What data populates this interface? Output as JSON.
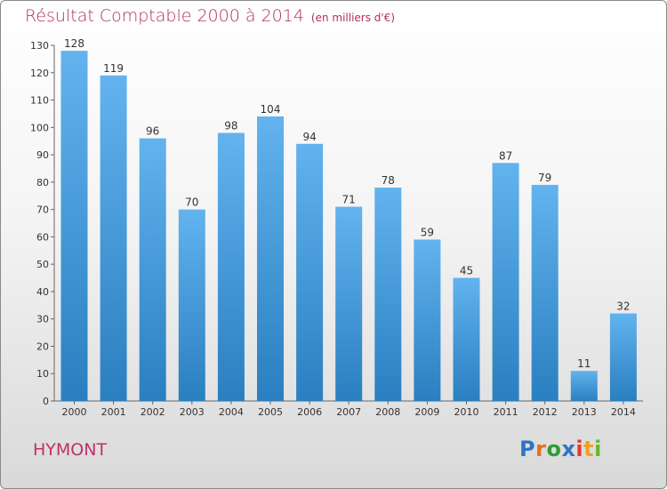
{
  "header": {
    "title": "Résultat Comptable 2000 à 2014",
    "subtitle": "(en milliers d'€)"
  },
  "footer": {
    "commune": "HYMONT",
    "brand": "Proxiti"
  },
  "colors": {
    "bar_light": "#62b3ee",
    "bar_dark": "#2a7fc0",
    "title": "#b03060",
    "text": "#333333",
    "axis": "#666666"
  },
  "logo_letters": [
    {
      "ch": "P",
      "color": "#2f74c4"
    },
    {
      "ch": "r",
      "color": "#e8701a"
    },
    {
      "ch": "o",
      "color": "#2f9c3a"
    },
    {
      "ch": "x",
      "color": "#2f74c4"
    },
    {
      "ch": "i",
      "color": "#e23a2a"
    },
    {
      "ch": "t",
      "color": "#f0a020"
    },
    {
      "ch": "i",
      "color": "#6ab42c"
    }
  ],
  "chart_data": {
    "type": "bar",
    "title": "Résultat Comptable 2000 à 2014",
    "subtitle": "(en milliers d'€)",
    "categories": [
      "2000",
      "2001",
      "2002",
      "2003",
      "2004",
      "2005",
      "2006",
      "2007",
      "2008",
      "2009",
      "2010",
      "2011",
      "2012",
      "2013",
      "2014"
    ],
    "values": [
      128,
      119,
      96,
      70,
      98,
      104,
      94,
      71,
      78,
      59,
      45,
      87,
      79,
      11,
      32
    ],
    "ylim": [
      0,
      130
    ],
    "yticks": [
      0,
      10,
      20,
      30,
      40,
      50,
      60,
      70,
      80,
      90,
      100,
      110,
      120,
      130
    ],
    "xlabel": "",
    "ylabel": "",
    "grid": false,
    "data_labels": true
  }
}
